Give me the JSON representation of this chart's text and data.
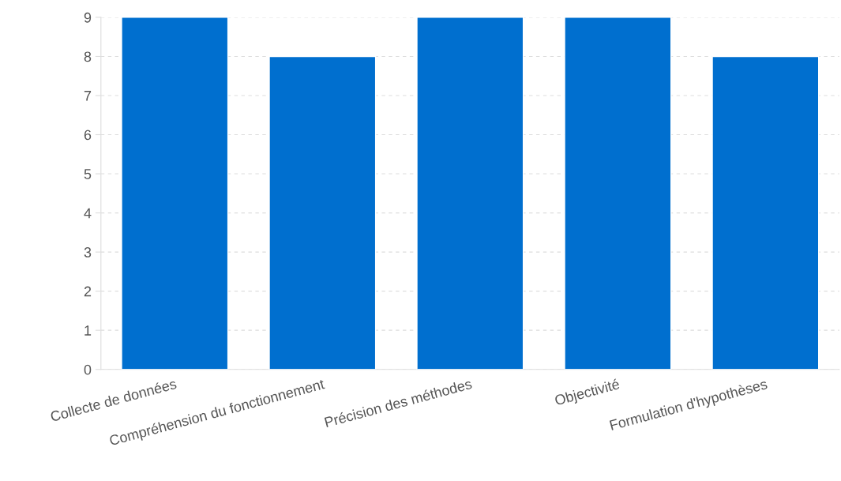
{
  "chart_data": {
    "type": "bar",
    "categories": [
      "Collecte de données",
      "Compréhension du fonctionnement",
      "Précision des méthodes",
      "Objectivité",
      "Formulation d'hypothèses"
    ],
    "values": [
      9,
      8,
      9,
      9,
      8
    ],
    "color": "#006fcf",
    "ylim": [
      0,
      9
    ],
    "yticks": [
      0,
      1,
      2,
      3,
      4,
      5,
      6,
      7,
      8,
      9
    ],
    "grid": "y",
    "legend": false
  }
}
